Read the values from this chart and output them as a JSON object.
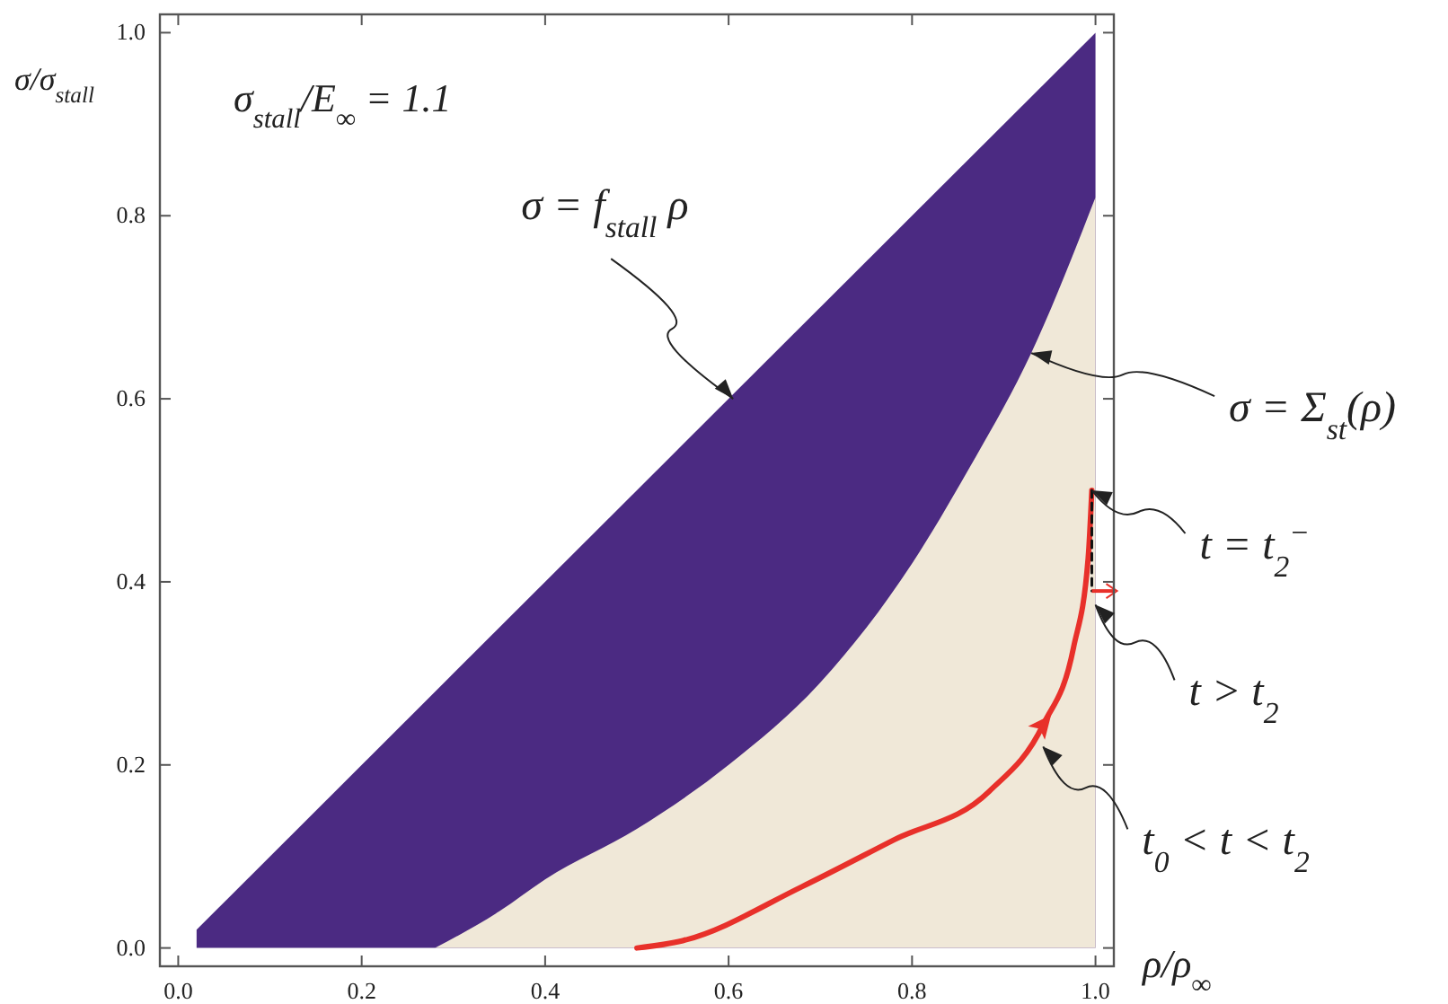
{
  "chart_data": {
    "type": "area",
    "xlabel": "ρ/ρ$_{∞}$",
    "ylabel": "σ/σ$_{stall}$",
    "xlim": [
      -0.02,
      1.02
    ],
    "ylim": [
      -0.02,
      1.02
    ],
    "xticks": [
      {
        "value": 0,
        "label": "0.0"
      },
      {
        "value": 0.2,
        "label": "0.2"
      },
      {
        "value": 0.4,
        "label": "0.4"
      },
      {
        "value": 0.6,
        "label": "0.6"
      },
      {
        "value": 0.8,
        "label": "0.8"
      },
      {
        "value": 1,
        "label": "1.0"
      }
    ],
    "yticks": [
      {
        "value": 0,
        "label": "0.0"
      },
      {
        "value": 0.2,
        "label": "0.2"
      },
      {
        "value": 0.4,
        "label": "0.4"
      },
      {
        "value": 0.6,
        "label": "0.6"
      },
      {
        "value": 0.8,
        "label": "0.8"
      },
      {
        "value": 1,
        "label": "1.0"
      }
    ],
    "grid": false,
    "series": [
      {
        "color": "#4b2a82",
        "x": [
          0.02,
          1
        ],
        "values": [
          0.02,
          1
        ]
      },
      {
        "color": "#f0e8d8",
        "x": [
          0.28,
          0.35,
          0.4,
          0.5,
          0.6,
          0.7,
          0.8,
          0.86,
          0.93,
          1
        ],
        "values": [
          0,
          0.04,
          0.075,
          0.13,
          0.2,
          0.29,
          0.42,
          0.52,
          0.65,
          0.82
        ]
      },
      {
        "type": "line",
        "color": "#e8302a",
        "line_style": "solid",
        "x": [
          0.5,
          0.55,
          0.68,
          0.78,
          0.884,
          0.943,
          0.976,
          0.992,
          0.996
        ],
        "values": [
          0,
          0.008,
          0.067,
          0.118,
          0.171,
          0.244,
          0.328,
          0.426,
          0.5
        ]
      },
      {
        "type": "line",
        "color": "#111111",
        "line_style": "dashed",
        "x": [
          0.996,
          0.996
        ],
        "values": [
          0.5,
          0.39
        ]
      }
    ],
    "annotations": [
      "σ$_{stall}$/E$_{∞}$ = 1.1",
      {
        "text": "σ = f$_{stall}$ ρ",
        "x": 0.605,
        "y": 0.6
      },
      {
        "text": "σ = Σ$_{st}$(ρ)",
        "x": 0.93,
        "y": 0.65
      },
      {
        "text": "t = t$_{2}$$^{−}$",
        "x": 0.996,
        "y": 0.5
      },
      {
        "text": "t > t$_{2}$",
        "x": 1.0,
        "y": 0.375
      },
      {
        "text": "t$_{0}$ < t < t$_{2}$",
        "x": 0.943,
        "y": 0.22
      }
    ]
  }
}
